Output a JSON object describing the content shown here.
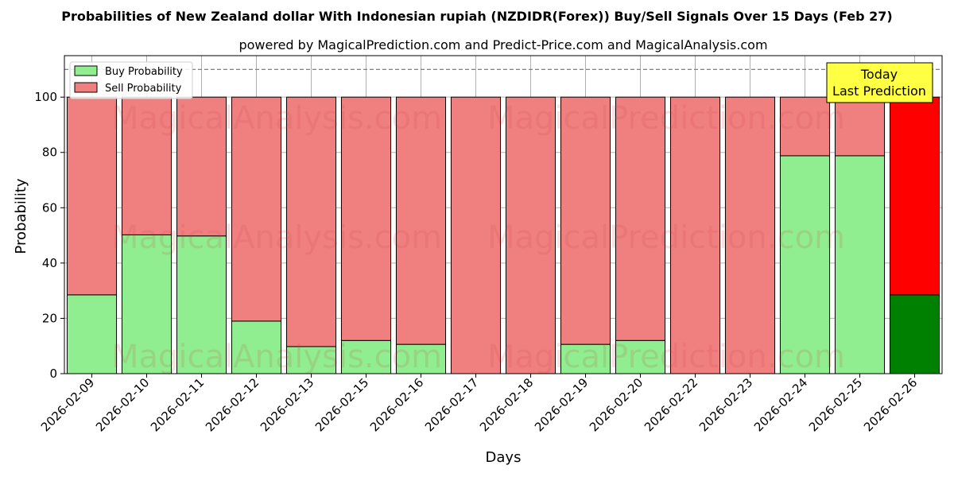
{
  "chart_data": {
    "type": "bar",
    "stacked": true,
    "title": "Probabilities of New Zealand dollar With Indonesian rupiah (NZDIDR(Forex)) Buy/Sell Signals Over 15 Days (Feb 27)",
    "subtitle": "powered by MagicalPrediction.com and Predict-Price.com and MagicalAnalysis.com",
    "xlabel": "Days",
    "ylabel": "Probability",
    "ylim": [
      0,
      115
    ],
    "yticks": [
      0,
      20,
      40,
      60,
      80,
      100
    ],
    "reference_line": 110,
    "grid": true,
    "legend_position": "top-left",
    "categories": [
      "2026-02-09",
      "2026-02-10",
      "2026-02-11",
      "2026-02-12",
      "2026-02-13",
      "2026-02-15",
      "2026-02-16",
      "2026-02-17",
      "2026-02-18",
      "2026-02-19",
      "2026-02-20",
      "2026-02-22",
      "2026-02-23",
      "2026-02-24",
      "2026-02-25",
      "2026-02-26"
    ],
    "series": [
      {
        "name": "Buy Probability",
        "color": "#90ee90",
        "highlight_color": "#008000",
        "values": [
          28.5,
          50.2,
          49.8,
          19.0,
          9.8,
          12.0,
          10.6,
          0,
          0,
          10.6,
          12.0,
          0,
          0,
          78.8,
          78.8,
          28.5
        ]
      },
      {
        "name": "Sell Probability",
        "color": "#f08080",
        "highlight_color": "#ff0000",
        "values": [
          71.5,
          49.8,
          50.2,
          81.0,
          90.2,
          88.0,
          89.4,
          100,
          100,
          89.4,
          88.0,
          100,
          100,
          21.2,
          21.2,
          71.5
        ]
      }
    ],
    "highlight_index": 15,
    "annotation": {
      "line1": "Today",
      "line2": "Last Prediction",
      "color": "#ffff44"
    },
    "watermark": [
      "MagicalAnalysis.com",
      "MagicalPrediction.com"
    ]
  }
}
